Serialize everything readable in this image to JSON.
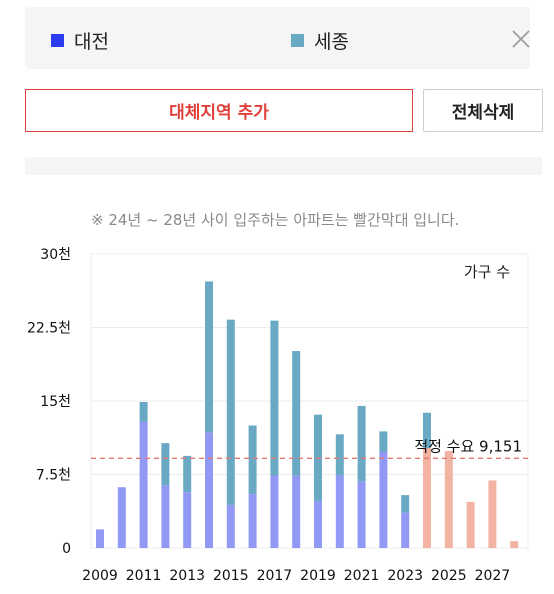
{
  "legend": {
    "items": [
      {
        "label": "대전",
        "color": "#2b3bf0"
      },
      {
        "label": "세종",
        "color": "#6aa9c4"
      }
    ],
    "close_icon": "close-icon"
  },
  "buttons": {
    "alternate_region": "대체지역 추가",
    "delete_all": "전체삭제"
  },
  "note": "※ 24년 ~ 28년 사이 입주하는 아파트는 빨간막대 입니다.",
  "chart_data": {
    "type": "bar",
    "stacked": true,
    "unit_label": "가구 수",
    "years": [
      2009,
      2010,
      2011,
      2012,
      2013,
      2014,
      2015,
      2016,
      2017,
      2018,
      2019,
      2020,
      2021,
      2022,
      2023,
      2024,
      2025,
      2026,
      2027,
      2028
    ],
    "x_tick_labels": [
      "2009",
      "2011",
      "2013",
      "2015",
      "2017",
      "2019",
      "2021",
      "2023",
      "2025",
      "2027"
    ],
    "y_tick_labels": [
      "0",
      "7.5천",
      "15천",
      "22.5천",
      "30천"
    ],
    "ylim": [
      0,
      30000
    ],
    "series": [
      {
        "name": "대전",
        "color": "#9199f5",
        "values": [
          1900,
          6200,
          12900,
          6400,
          5700,
          11800,
          4400,
          5500,
          7400,
          7400,
          4800,
          7400,
          6800,
          9800,
          3600,
          10200,
          9900,
          4700,
          6900,
          700
        ]
      },
      {
        "name": "세종",
        "color": "#6aa9c4",
        "values": [
          0,
          0,
          2000,
          4300,
          3700,
          15400,
          18900,
          7000,
          15800,
          12700,
          8800,
          4200,
          7700,
          2100,
          1800,
          3600,
          0,
          0,
          0,
          0
        ]
      }
    ],
    "future_color": "#f2b3a3",
    "future_from_year": 2024,
    "reference_line": {
      "value": 9151,
      "label": "적정 수요 9,151",
      "color": "#e57a74"
    },
    "grid": "horizontal"
  }
}
